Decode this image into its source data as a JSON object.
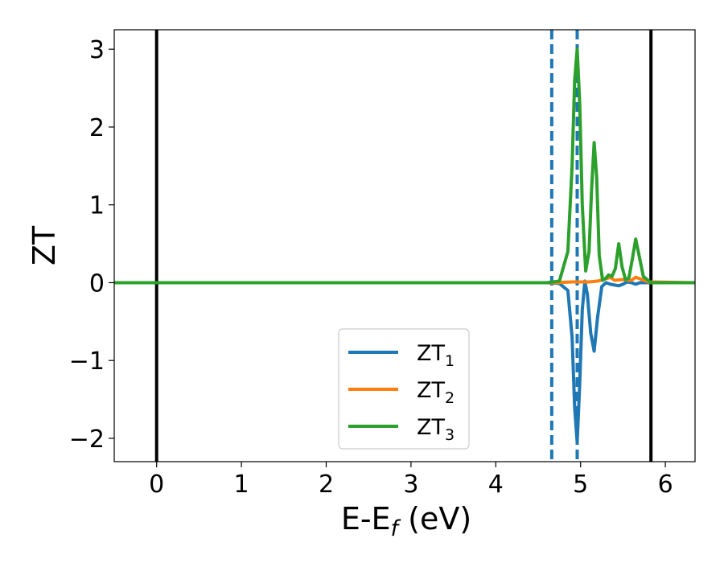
{
  "chart_data": {
    "type": "line",
    "title": "",
    "xlabel": {
      "main": "E-E",
      "sub": "f",
      "tail": " (eV)"
    },
    "ylabel": "ZT",
    "xlim": [
      -0.5,
      6.35
    ],
    "ylim": [
      -2.3,
      3.25
    ],
    "xticks": [
      0,
      1,
      2,
      3,
      4,
      5,
      6
    ],
    "xtick_labels": [
      "0",
      "1",
      "2",
      "3",
      "4",
      "5",
      "6"
    ],
    "yticks": [
      -2,
      -1,
      0,
      1,
      2,
      3
    ],
    "ytick_labels": [
      "−2",
      "−1",
      "0",
      "1",
      "2",
      "3"
    ],
    "grid": false,
    "legend_position": "lower-center",
    "vertical_lines": [
      {
        "x": 0.0,
        "style": "solid",
        "color": "#000000"
      },
      {
        "x": 5.83,
        "style": "solid",
        "color": "#000000"
      },
      {
        "x": 4.66,
        "style": "dashed",
        "color": "#1f77b4"
      },
      {
        "x": 4.96,
        "style": "dashed",
        "color": "#1f77b4"
      }
    ],
    "series": [
      {
        "name": {
          "main": "ZT",
          "sub": "1"
        },
        "color": "#1f77b4",
        "x": [
          -0.5,
          4.6,
          4.75,
          4.85,
          4.9,
          4.93,
          4.96,
          4.99,
          5.02,
          5.05,
          5.08,
          5.12,
          5.16,
          5.2,
          5.25,
          5.3,
          5.35,
          5.4,
          5.45,
          5.5,
          5.55,
          5.6,
          5.65,
          5.7,
          5.75,
          5.83,
          6.35
        ],
        "y": [
          0,
          0,
          -0.01,
          -0.1,
          -0.7,
          -1.6,
          -2.05,
          -1.3,
          -0.35,
          0.02,
          -0.15,
          -0.65,
          -0.88,
          -0.45,
          -0.05,
          0.0,
          -0.02,
          -0.03,
          -0.04,
          -0.02,
          0.01,
          0.0,
          -0.02,
          0.0,
          0.0,
          0,
          0
        ]
      },
      {
        "name": {
          "main": "ZT",
          "sub": "2"
        },
        "color": "#ff7f0e",
        "x": [
          -0.5,
          4.7,
          4.9,
          5.0,
          5.1,
          5.2,
          5.3,
          5.35,
          5.4,
          5.5,
          5.6,
          5.65,
          5.7,
          5.8,
          6.35
        ],
        "y": [
          0,
          0,
          0.01,
          0.01,
          0.01,
          0.02,
          0.05,
          0.07,
          0.03,
          0.04,
          0.03,
          0.07,
          0.05,
          0.01,
          0
        ]
      },
      {
        "name": {
          "main": "ZT",
          "sub": "3"
        },
        "color": "#2ca02c",
        "x": [
          -0.5,
          4.6,
          4.75,
          4.85,
          4.9,
          4.93,
          4.96,
          4.99,
          5.02,
          5.06,
          5.1,
          5.13,
          5.16,
          5.19,
          5.22,
          5.26,
          5.3,
          5.33,
          5.37,
          5.41,
          5.45,
          5.49,
          5.53,
          5.57,
          5.61,
          5.65,
          5.69,
          5.74,
          5.83,
          6.35
        ],
        "y": [
          0,
          0,
          0.02,
          0.4,
          1.5,
          2.6,
          3.0,
          2.3,
          1.0,
          0.15,
          0.4,
          1.2,
          1.8,
          1.35,
          0.35,
          0.03,
          0.06,
          0.1,
          0.08,
          0.18,
          0.5,
          0.2,
          0.04,
          0.06,
          0.3,
          0.56,
          0.35,
          0.08,
          0,
          0
        ]
      }
    ]
  }
}
